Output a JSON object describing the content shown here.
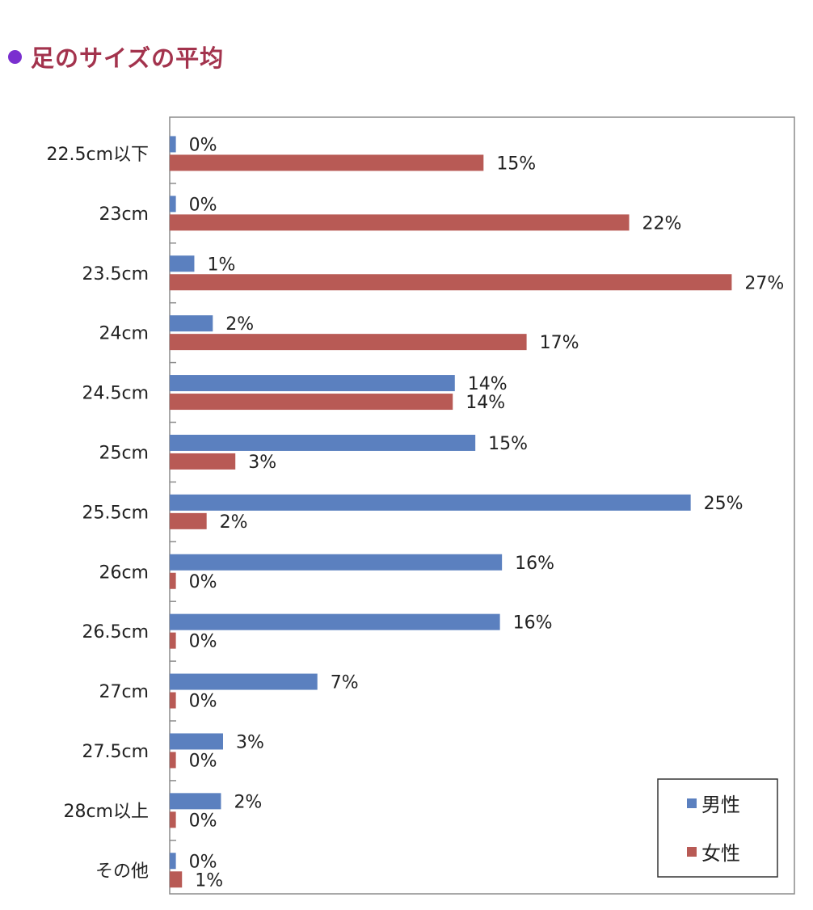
{
  "heading": {
    "title": "足のサイズの平均",
    "bullet_color": "#7a2fcf",
    "title_color": "#a3334d"
  },
  "chart_data": {
    "type": "bar",
    "orientation": "horizontal",
    "categories": [
      "22.5cm以下",
      "23cm",
      "23.5cm",
      "24cm",
      "24.5cm",
      "25cm",
      "25.5cm",
      "26cm",
      "26.5cm",
      "27cm",
      "27.5cm",
      "28cm以上",
      "その他"
    ],
    "series": [
      {
        "name": "男性",
        "color": "#5b80bf",
        "values": [
          0.3,
          0.3,
          1.2,
          2.1,
          13.9,
          14.9,
          25.4,
          16.2,
          16.1,
          7.2,
          2.6,
          2.5,
          0.3
        ],
        "labels": [
          "0%",
          "0%",
          "1%",
          "2%",
          "14%",
          "15%",
          "25%",
          "16%",
          "16%",
          "7%",
          "3%",
          "2%",
          "0%"
        ]
      },
      {
        "name": "女性",
        "color": "#b85a55",
        "values": [
          15.3,
          22.4,
          27.4,
          17.4,
          13.8,
          3.2,
          1.8,
          0.3,
          0.3,
          0.3,
          0.3,
          0.3,
          0.6
        ],
        "labels": [
          "15%",
          "22%",
          "27%",
          "17%",
          "14%",
          "3%",
          "2%",
          "0%",
          "0%",
          "0%",
          "0%",
          "0%",
          "1%"
        ]
      }
    ],
    "xlim": [
      0,
      31
    ],
    "grid": false,
    "legend": "bottom-right"
  }
}
